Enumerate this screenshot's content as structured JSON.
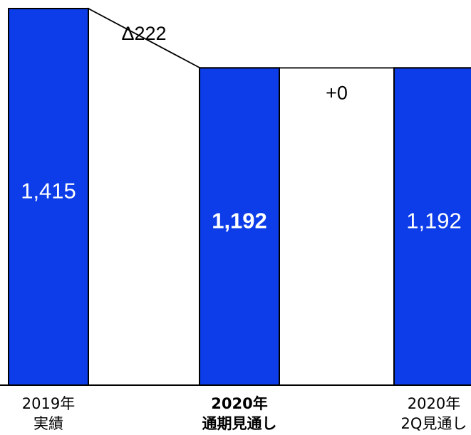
{
  "chart_data": {
    "type": "waterfall",
    "categories": [
      {
        "line1": "2019年",
        "line2": "実績",
        "bold": false
      },
      {
        "line1": "2020年",
        "line2": "通期見通し",
        "bold": true
      },
      {
        "line1": "2020年",
        "line2": "2Q見通し",
        "bold": false
      }
    ],
    "totals": [
      {
        "category_index": 0,
        "value": 1415,
        "label": "1,415",
        "bold": false
      },
      {
        "category_index": 1,
        "value": 1192,
        "label": "1,192",
        "bold": true
      },
      {
        "category_index": 2,
        "value": 1192,
        "label": "1,192",
        "bold": false
      }
    ],
    "steps": [
      {
        "from": 0,
        "to": 1,
        "delta": -222,
        "label": "Δ222"
      },
      {
        "from": 1,
        "to": 2,
        "delta": 0,
        "label": "+0"
      }
    ],
    "ylim": [
      0,
      1415
    ],
    "colors": {
      "bar_fill": "#0d3de8",
      "bar_stroke": "#000000",
      "bar_label": "#ffffff",
      "step_label": "#000000",
      "category_label": "#000000"
    }
  }
}
